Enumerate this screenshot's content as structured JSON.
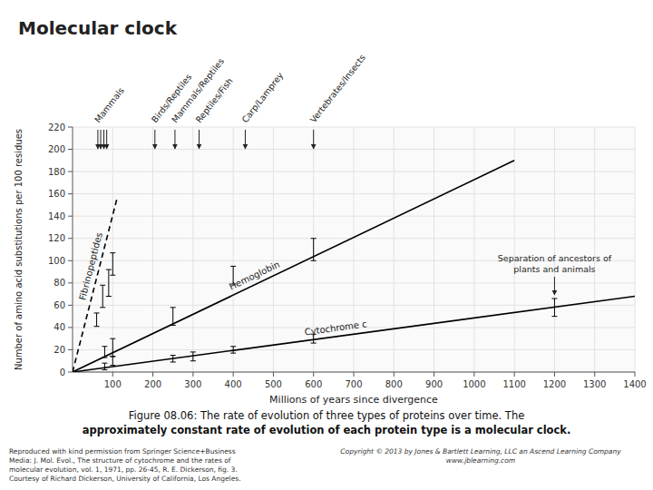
{
  "chart_data": {
    "type": "line",
    "title": "Molecular clock",
    "caption": [
      "Figure 08.06: The rate of evolution of three types of proteins over time. The",
      "approximately constant rate of evolution of each protein type is a molecular clock."
    ],
    "credits": [
      "Reproduced with kind permission from Springer Science+Business\nMedia: J. Mol. Evol., The structure of cytochrome and the rates of\nmolecular evolution, vol. 1, 1971, pp. 26-45, R. E. Dickerson, fig. 3.\nCourtesy of Richard Dickerson, University of California, Los Angeles.",
      "Copyright © 2013 by Jones & Bartlett Learning, LLC an Ascend Learning Company\nwww.jblearning.com"
    ],
    "xlabel": "Millions of years since divergence",
    "ylabel": "Number of amino acid substitutions per 100 residues",
    "xlim": [
      0,
      1400
    ],
    "ylim": [
      0,
      220
    ],
    "xticks": [
      100,
      200,
      300,
      400,
      500,
      600,
      700,
      800,
      900,
      1000,
      1100,
      1200,
      1300,
      1400
    ],
    "yticks": [
      0,
      20,
      40,
      60,
      80,
      100,
      120,
      140,
      160,
      180,
      200,
      220
    ],
    "grid": true,
    "series": [
      {
        "name": "Hemoglobin",
        "color": "#000000",
        "line_style": "solid",
        "x": [
          0,
          1100
        ],
        "values": [
          0,
          190
        ],
        "error_x": [
          80,
          100,
          250,
          400,
          600
        ],
        "error_values": [
          18,
          22,
          50,
          87,
          110
        ],
        "errors": [
          5,
          8,
          8,
          8,
          10
        ]
      },
      {
        "name": "Cytochrome c",
        "color": "#000000",
        "line_style": "solid",
        "x": [
          0,
          1400
        ],
        "values": [
          0,
          68
        ],
        "error_x": [
          80,
          100,
          250,
          300,
          400,
          600,
          1200
        ],
        "error_values": [
          5,
          10,
          12,
          14,
          20,
          30,
          58
        ],
        "errors": [
          3,
          4,
          3,
          4,
          3,
          4,
          8
        ]
      },
      {
        "name": "Fibrinopeptides",
        "color": "#000000",
        "line_style": "dashed",
        "x": [
          0,
          110
        ],
        "values": [
          0,
          155
        ],
        "error_x": [
          60,
          75,
          90,
          100
        ],
        "error_values": [
          47,
          68,
          80,
          97
        ],
        "errors": [
          6,
          10,
          12,
          10
        ]
      }
    ],
    "divergence_events": [
      {
        "label": "Mammals",
        "x": [
          63,
          70,
          78,
          85
        ]
      },
      {
        "label": "Birds/Reptiles",
        "x": [
          205
        ]
      },
      {
        "label": "Mammals/Reptiles",
        "x": [
          255
        ]
      },
      {
        "label": "Reptiles/Fish",
        "x": [
          315
        ]
      },
      {
        "label": "Carp/Lamprey",
        "x": [
          430
        ]
      },
      {
        "label": "Vertebrates/Insects",
        "x": [
          600
        ]
      }
    ],
    "annotations": [
      {
        "text": "Separation of ancestors of\nplants and animals",
        "x": 1200
      }
    ]
  }
}
